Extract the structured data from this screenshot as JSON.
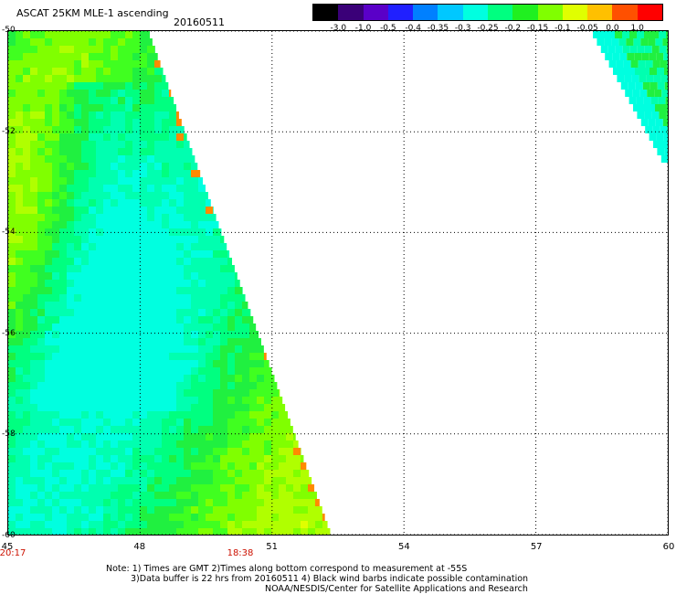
{
  "header": {
    "title": "ASCAT 25KM MLE-1 ascending",
    "date": "20160511"
  },
  "colorbar": {
    "labels": [
      "-3.0",
      "-1.0",
      "-0.5",
      "-0.4",
      "-0.35",
      "-0.3",
      "-0.25",
      "-0.2",
      "-0.15",
      "-0.1",
      "-0.05",
      "0.0",
      "1.0"
    ],
    "colors": [
      "#000000",
      "#3a0078",
      "#5a00c8",
      "#2020ff",
      "#0080ff",
      "#00c8ff",
      "#00ffe0",
      "#00ff80",
      "#20f020",
      "#80ff00",
      "#e0ff00",
      "#ffc000",
      "#ff5000",
      "#ff0000"
    ]
  },
  "axes": {
    "lat_labels": [
      "-50",
      "-52",
      "-54",
      "-56",
      "-58",
      "-60"
    ],
    "lon_labels": [
      "45",
      "48",
      "51",
      "54",
      "57",
      "60"
    ],
    "lat_range": [
      -60,
      -50
    ],
    "lon_range": [
      45,
      60
    ]
  },
  "times": [
    "20:17",
    "18:38"
  ],
  "notes": [
    "Note: 1) Times are GMT 2)Times along bottom correspond to measurement at -55S",
    "3)Data buffer is 22 hrs from 20160511 4) Black wind barbs indicate possible contamination",
    "NOAA/NESDIS/Center for Satellite Applications and Research"
  ]
}
